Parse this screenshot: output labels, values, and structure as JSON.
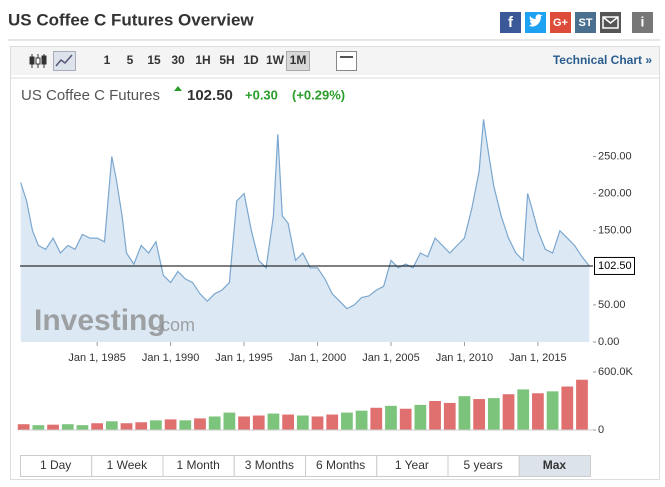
{
  "header": {
    "title": "US Coffee C Futures Overview",
    "share": [
      "f",
      "G+",
      "ST",
      "i"
    ]
  },
  "toolbar": {
    "intervals": [
      "1",
      "5",
      "15",
      "30",
      "1H",
      "5H",
      "1D",
      "1W",
      "1M"
    ],
    "link": "Technical Chart »"
  },
  "quote": {
    "name": "US Coffee C Futures",
    "price": "102.50",
    "change": "+0.30",
    "change_pct": "(+0.29%)"
  },
  "watermark": {
    "brand": "Investing",
    "suffix": ".com"
  },
  "chart_data": [
    {
      "type": "area",
      "color": "#7ba7cf",
      "x": [
        1979.8,
        1980.2,
        1980.6,
        1981,
        1981.5,
        1982,
        1982.5,
        1983,
        1983.5,
        1984,
        1984.5,
        1985,
        1985.5,
        1986,
        1986.3,
        1986.7,
        1987,
        1987.5,
        1988,
        1988.5,
        1989,
        1989.5,
        1990,
        1990.5,
        1991,
        1991.5,
        1992,
        1992.5,
        1993,
        1993.5,
        1994,
        1994.5,
        1995,
        1995.5,
        1996,
        1996.5,
        1997,
        1997.3,
        1997.6,
        1998,
        1998.5,
        1999,
        1999.5,
        2000,
        2000.5,
        2001,
        2001.5,
        2002,
        2002.5,
        2003,
        2003.5,
        2004,
        2004.5,
        2005,
        2005.5,
        2006,
        2006.5,
        2007,
        2007.5,
        2008,
        2008.5,
        2009,
        2009.5,
        2010,
        2010.5,
        2011,
        2011.3,
        2011.6,
        2012,
        2012.5,
        2013,
        2013.5,
        2014,
        2014.3,
        2014.6,
        2015,
        2015.5,
        2016,
        2016.5,
        2017,
        2017.5,
        2018,
        2018.5
      ],
      "values": [
        215,
        190,
        150,
        130,
        125,
        140,
        120,
        130,
        125,
        145,
        140,
        140,
        135,
        250,
        220,
        170,
        120,
        105,
        130,
        120,
        135,
        90,
        80,
        95,
        85,
        80,
        65,
        55,
        65,
        70,
        80,
        190,
        200,
        150,
        110,
        100,
        170,
        280,
        170,
        160,
        110,
        120,
        100,
        100,
        85,
        65,
        55,
        45,
        50,
        60,
        62,
        70,
        75,
        110,
        100,
        105,
        100,
        120,
        115,
        140,
        130,
        120,
        130,
        140,
        180,
        230,
        300,
        260,
        210,
        170,
        140,
        120,
        110,
        200,
        180,
        150,
        125,
        120,
        150,
        140,
        130,
        115,
        102.5
      ],
      "xlim": [
        1979.75,
        2018.75
      ],
      "xticks": [
        {
          "value": 1985,
          "label": "Jan 1, 1985"
        },
        {
          "value": 1990,
          "label": "Jan 1, 1990"
        },
        {
          "value": 1995,
          "label": "Jan 1, 1995"
        },
        {
          "value": 2000,
          "label": "Jan 1, 2000"
        },
        {
          "value": 2005,
          "label": "Jan 1, 2005"
        },
        {
          "value": 2010,
          "label": "Jan 1, 2010"
        },
        {
          "value": 2015,
          "label": "Jan 1, 2015"
        }
      ],
      "ylim": [
        0,
        310
      ],
      "yticks": [
        {
          "value": 0,
          "label": "0.00"
        },
        {
          "value": 50,
          "label": "50.00"
        },
        {
          "value": 150,
          "label": "150.00"
        },
        {
          "value": 200,
          "label": "200.00"
        },
        {
          "value": 250,
          "label": "250.00"
        }
      ],
      "reference": {
        "value": 102.5,
        "label": "102.50"
      }
    },
    {
      "type": "bar",
      "x": [
        1980,
        1981,
        1982,
        1983,
        1984,
        1985,
        1986,
        1987,
        1988,
        1989,
        1990,
        1991,
        1992,
        1993,
        1994,
        1995,
        1996,
        1997,
        1998,
        1999,
        2000,
        2001,
        2002,
        2003,
        2004,
        2005,
        2006,
        2007,
        2008,
        2009,
        2010,
        2011,
        2012,
        2013,
        2014,
        2015,
        2016,
        2017,
        2018
      ],
      "values": [
        60000,
        50000,
        55000,
        60000,
        50000,
        70000,
        90000,
        70000,
        80000,
        100000,
        110000,
        100000,
        120000,
        140000,
        180000,
        140000,
        150000,
        170000,
        160000,
        150000,
        140000,
        160000,
        180000,
        200000,
        230000,
        250000,
        220000,
        260000,
        300000,
        280000,
        350000,
        320000,
        330000,
        370000,
        420000,
        380000,
        400000,
        450000,
        520000
      ],
      "colors": [
        "#e07070",
        "#7cc47c",
        "#e07070",
        "#7cc47c",
        "#7cc47c",
        "#e07070",
        "#7cc47c",
        "#e07070",
        "#e07070",
        "#7cc47c",
        "#e07070",
        "#7cc47c",
        "#e07070",
        "#7cc47c",
        "#7cc47c",
        "#e07070",
        "#e07070",
        "#7cc47c",
        "#e07070",
        "#7cc47c",
        "#e07070",
        "#e07070",
        "#7cc47c",
        "#7cc47c",
        "#e07070",
        "#7cc47c",
        "#e07070",
        "#7cc47c",
        "#e07070",
        "#e07070",
        "#7cc47c",
        "#e07070",
        "#7cc47c",
        "#e07070",
        "#7cc47c",
        "#e07070",
        "#7cc47c",
        "#e07070",
        "#e07070"
      ],
      "xlim": [
        1979.75,
        2018.75
      ],
      "ylim": [
        0,
        600000
      ],
      "yticks": [
        0,
        {
          "value": 600000,
          "label": "600.0K"
        }
      ]
    }
  ],
  "ranges": [
    "1 Day",
    "1 Week",
    "1 Month",
    "3 Months",
    "6 Months",
    "1 Year",
    "5 years",
    "Max"
  ]
}
